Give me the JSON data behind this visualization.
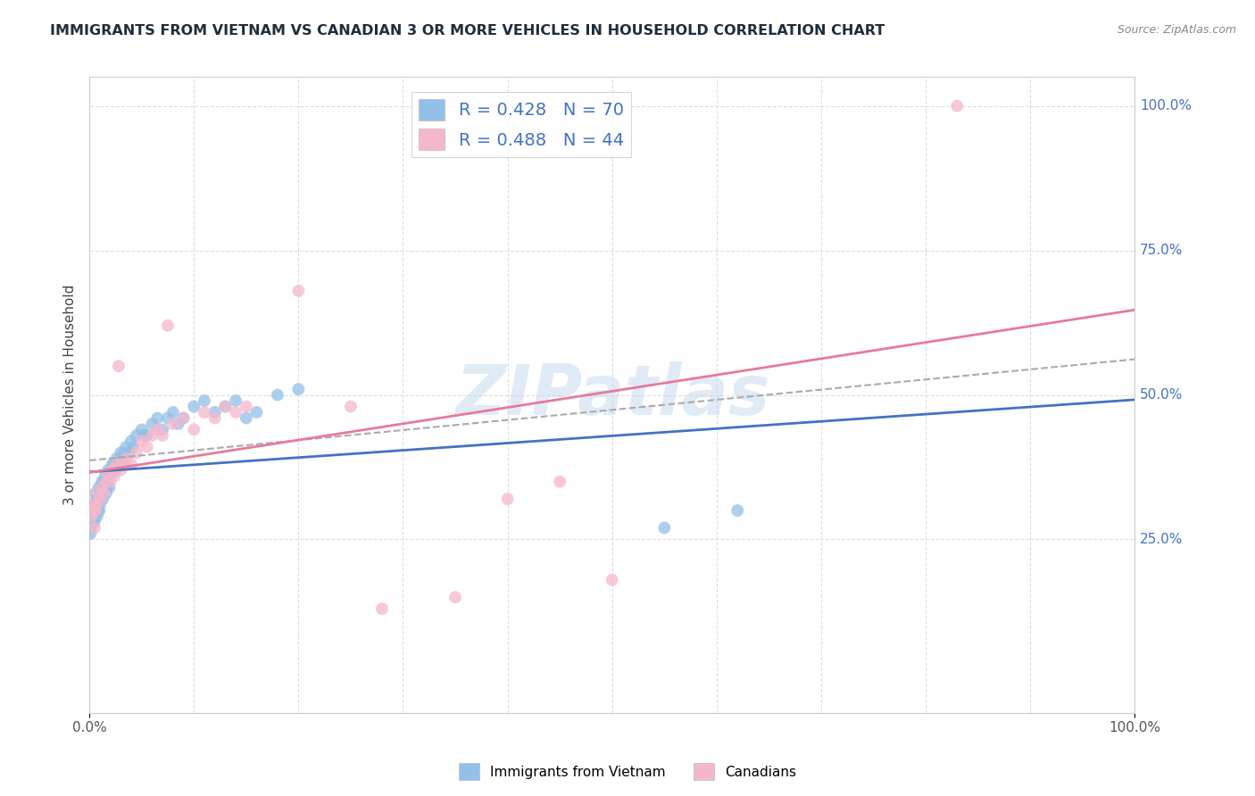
{
  "title": "IMMIGRANTS FROM VIETNAM VS CANADIAN 3 OR MORE VEHICLES IN HOUSEHOLD CORRELATION CHART",
  "source": "Source: ZipAtlas.com",
  "ylabel": "3 or more Vehicles in Household",
  "watermark": "ZIPatlas",
  "blue_R": 0.428,
  "blue_N": 70,
  "pink_R": 0.488,
  "pink_N": 44,
  "blue_color": "#92C0E8",
  "pink_color": "#F5B8CB",
  "blue_line_color": "#4472C4",
  "pink_line_color": "#E8799A",
  "gray_dash_color": "#AAAAAA",
  "title_color": "#1F2D3D",
  "label_color": "#4472C4",
  "background_color": "#FFFFFF",
  "grid_color": "#DDDDDD",
  "blue_scatter": [
    [
      0.2,
      30
    ],
    [
      0.3,
      28
    ],
    [
      0.4,
      31
    ],
    [
      0.5,
      29
    ],
    [
      0.6,
      33
    ],
    [
      0.7,
      32
    ],
    [
      0.8,
      30
    ],
    [
      0.9,
      34
    ],
    [
      1.0,
      31
    ],
    [
      1.1,
      33
    ],
    [
      1.2,
      35
    ],
    [
      1.3,
      32
    ],
    [
      1.4,
      34
    ],
    [
      1.5,
      36
    ],
    [
      1.6,
      33
    ],
    [
      1.7,
      35
    ],
    [
      1.8,
      37
    ],
    [
      1.9,
      34
    ],
    [
      2.0,
      36
    ],
    [
      2.2,
      38
    ],
    [
      2.4,
      37
    ],
    [
      2.6,
      39
    ],
    [
      2.8,
      38
    ],
    [
      3.0,
      40
    ],
    [
      3.2,
      39
    ],
    [
      3.5,
      41
    ],
    [
      3.8,
      40
    ],
    [
      4.0,
      42
    ],
    [
      4.5,
      43
    ],
    [
      5.0,
      44
    ],
    [
      5.5,
      43
    ],
    [
      6.0,
      45
    ],
    [
      6.5,
      46
    ],
    [
      7.0,
      44
    ],
    [
      7.5,
      46
    ],
    [
      8.0,
      47
    ],
    [
      8.5,
      45
    ],
    [
      9.0,
      46
    ],
    [
      10.0,
      48
    ],
    [
      11.0,
      49
    ],
    [
      12.0,
      47
    ],
    [
      13.0,
      48
    ],
    [
      14.0,
      49
    ],
    [
      15.0,
      46
    ],
    [
      16.0,
      47
    ],
    [
      18.0,
      50
    ],
    [
      20.0,
      51
    ],
    [
      0.15,
      27
    ],
    [
      0.25,
      29
    ],
    [
      0.35,
      28
    ],
    [
      0.55,
      30
    ],
    [
      0.65,
      31
    ],
    [
      0.75,
      29
    ],
    [
      0.85,
      32
    ],
    [
      0.95,
      30
    ],
    [
      1.05,
      33
    ],
    [
      1.25,
      34
    ],
    [
      1.45,
      35
    ],
    [
      1.65,
      34
    ],
    [
      1.85,
      36
    ],
    [
      2.1,
      37
    ],
    [
      2.3,
      38
    ],
    [
      2.5,
      37
    ],
    [
      3.3,
      40
    ],
    [
      4.2,
      41
    ],
    [
      5.2,
      43
    ],
    [
      55.0,
      27
    ],
    [
      62.0,
      30
    ],
    [
      0.1,
      26
    ],
    [
      0.45,
      28
    ]
  ],
  "pink_scatter": [
    [
      0.2,
      29
    ],
    [
      0.4,
      31
    ],
    [
      0.6,
      30
    ],
    [
      0.8,
      33
    ],
    [
      1.0,
      32
    ],
    [
      1.2,
      34
    ],
    [
      1.4,
      33
    ],
    [
      1.6,
      35
    ],
    [
      1.8,
      36
    ],
    [
      2.0,
      35
    ],
    [
      2.2,
      37
    ],
    [
      2.4,
      36
    ],
    [
      2.6,
      38
    ],
    [
      3.0,
      37
    ],
    [
      3.5,
      39
    ],
    [
      4.0,
      38
    ],
    [
      4.5,
      40
    ],
    [
      5.0,
      42
    ],
    [
      5.5,
      41
    ],
    [
      6.5,
      44
    ],
    [
      7.0,
      43
    ],
    [
      8.0,
      45
    ],
    [
      9.0,
      46
    ],
    [
      10.0,
      44
    ],
    [
      11.0,
      47
    ],
    [
      12.0,
      46
    ],
    [
      13.0,
      48
    ],
    [
      45.0,
      35
    ],
    [
      50.0,
      18
    ],
    [
      2.8,
      55
    ],
    [
      7.5,
      62
    ],
    [
      0.5,
      27
    ],
    [
      3.2,
      38
    ],
    [
      6.0,
      43
    ],
    [
      14.0,
      47
    ],
    [
      15.0,
      48
    ],
    [
      0.3,
      30
    ],
    [
      25.0,
      48
    ],
    [
      0.7,
      31
    ],
    [
      40.0,
      32
    ],
    [
      83.0,
      100
    ],
    [
      35.0,
      15
    ],
    [
      28.0,
      13
    ],
    [
      20.0,
      68
    ]
  ],
  "xlim": [
    0,
    100
  ],
  "ylim": [
    0,
    100
  ],
  "xtick_labels": [
    "0.0%",
    "100.0%"
  ],
  "ytick_labels": [
    "25.0%",
    "50.0%",
    "75.0%",
    "100.0%"
  ],
  "ytick_positions": [
    25,
    50,
    75,
    100
  ]
}
